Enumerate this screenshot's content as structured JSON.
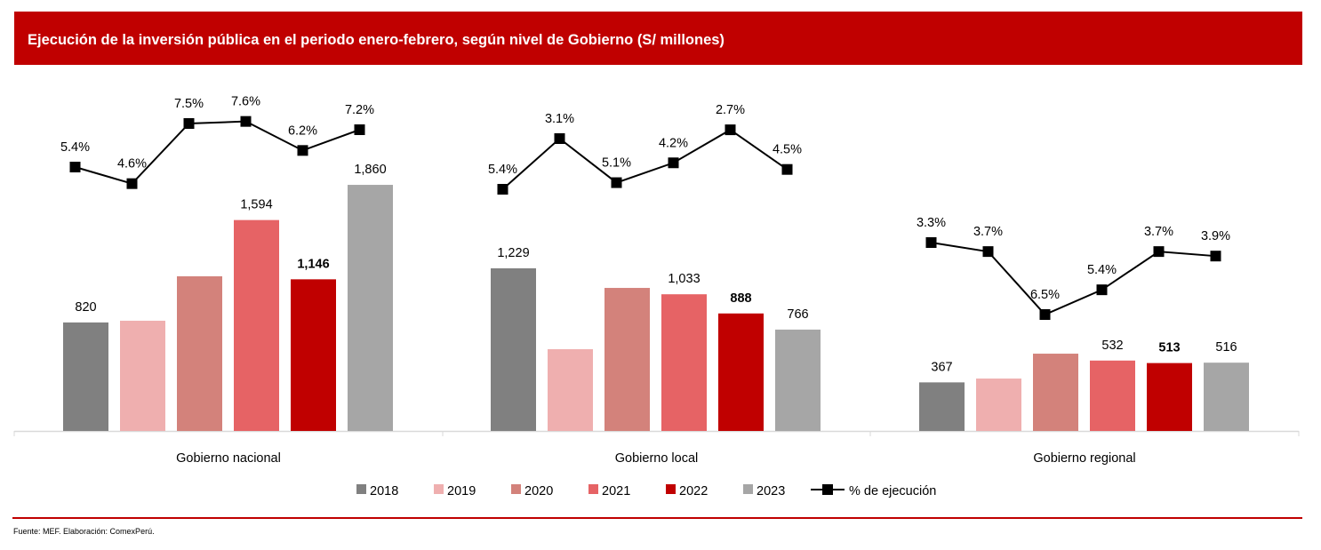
{
  "header": {
    "title": "Ejecución de la inversión pública en el periodo enero-febrero, según nivel de Gobierno (S/ millones)"
  },
  "footer": {
    "source": "Fuente: MEF. Elaboración: ComexPerú."
  },
  "colors": {
    "accent": "#c00000",
    "2018": "#808080",
    "2019": "#efafaf",
    "2020": "#d3827b",
    "2021": "#e66365",
    "2022": "#c00000",
    "2023": "#a6a6a6",
    "line": "#000000"
  },
  "chart_data": {
    "type": "bar",
    "title": "Ejecución de la inversión pública en el periodo enero-febrero, según nivel de Gobierno (S/ millones)",
    "categories": [
      "Gobierno nacional",
      "Gobierno local",
      "Gobierno regional"
    ],
    "series": [
      {
        "name": "2018",
        "values": [
          820,
          1229,
          367
        ],
        "labels": [
          "820",
          "1,229",
          "367"
        ]
      },
      {
        "name": "2019",
        "values": [
          833,
          618,
          396
        ],
        "labels": [
          "",
          "",
          ""
        ]
      },
      {
        "name": "2020",
        "values": [
          1169,
          1081,
          584
        ],
        "labels": [
          "",
          "",
          ""
        ]
      },
      {
        "name": "2021",
        "values": [
          1594,
          1033,
          532
        ],
        "labels": [
          "1,594",
          "1,033",
          "532"
        ]
      },
      {
        "name": "2022",
        "values": [
          1146,
          888,
          513
        ],
        "labels": [
          "1,146",
          "888",
          "513"
        ],
        "bold_labels": true
      },
      {
        "name": "2023",
        "values": [
          1860,
          766,
          516
        ],
        "labels": [
          "1,860",
          "766",
          "516"
        ]
      }
    ],
    "line_series": {
      "name": "% de ejecución",
      "values": [
        [
          5.4,
          4.6,
          7.5,
          7.6,
          6.2,
          7.2
        ],
        [
          5.4,
          3.1,
          5.1,
          4.2,
          2.7,
          4.5
        ],
        [
          3.3,
          3.7,
          6.5,
          5.4,
          3.7,
          3.9
        ]
      ],
      "labels": [
        [
          "5.4%",
          "4.6%",
          "7.5%",
          "7.6%",
          "6.2%",
          "7.2%"
        ],
        [
          "5.4%",
          "3.1%",
          "5.1%",
          "4.2%",
          "2.7%",
          "4.5%"
        ],
        [
          "3.3%",
          "3.7%",
          "6.5%",
          "5.4%",
          "3.7%",
          "3.9%"
        ]
      ]
    },
    "legend": [
      "2018",
      "2019",
      "2020",
      "2021",
      "2022",
      "2023",
      "% de ejecución"
    ],
    "legend_position": "bottom",
    "xlabel": "",
    "ylabel": "",
    "grid": false
  }
}
